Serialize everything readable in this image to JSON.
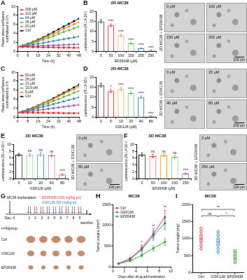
{
  "chart_data": [
    {
      "panel": "A",
      "type": "line",
      "x": [
        0,
        4,
        8,
        12,
        16,
        20,
        24,
        28,
        32,
        36,
        40,
        44,
        48
      ],
      "xlim": [
        0,
        48
      ],
      "xticks": [
        0,
        8,
        16,
        24,
        32,
        40,
        48
      ],
      "ylim": [
        0,
        10
      ],
      "yticks": [
        0,
        2,
        4,
        6,
        8,
        10
      ],
      "xlabel": "Time (h)",
      "ylabel": [
        "Phase area confluence",
        "normalized to 0 h"
      ],
      "grid": false,
      "legend": "upper left",
      "series": [
        {
          "name": "200 μM",
          "color": "#e41a1c",
          "values": [
            1,
            1,
            1,
            0.95,
            0.95,
            0.9,
            0.9,
            0.9,
            0.85,
            0.85,
            0.85,
            0.8,
            0.8
          ]
        },
        {
          "name": "113 μM",
          "color": "#984ea3",
          "values": [
            1,
            1.05,
            1.1,
            1.15,
            1.2,
            1.25,
            1.3,
            1.35,
            1.4,
            1.45,
            1.5,
            1.55,
            1.6
          ]
        },
        {
          "name": "64 μM",
          "color": "#377eb8",
          "values": [
            1,
            1.15,
            1.3,
            1.5,
            1.7,
            1.9,
            2.1,
            2.3,
            2.5,
            2.7,
            2.9,
            3.1,
            3.3
          ]
        },
        {
          "name": "36 μM",
          "color": "#4daf4a",
          "values": [
            1,
            1.2,
            1.5,
            1.8,
            2.2,
            2.6,
            3,
            3.4,
            3.9,
            4.3,
            4.7,
            5.1,
            5.5
          ]
        },
        {
          "name": "20 μM",
          "color": "#ff7f00",
          "values": [
            1,
            1.25,
            1.6,
            2,
            2.4,
            2.9,
            3.4,
            3.9,
            4.4,
            5,
            5.5,
            6,
            6.5
          ]
        },
        {
          "name": "Ctrl",
          "color": "#000000",
          "values": [
            1,
            1.3,
            1.7,
            2.1,
            2.6,
            3.1,
            3.7,
            4.3,
            4.9,
            5.5,
            6.1,
            6.7,
            7.3
          ]
        }
      ]
    },
    {
      "panel": "B",
      "type": "bar",
      "title": "2D MC38",
      "categories": [
        "0",
        "50",
        "100",
        "150",
        "200",
        "250"
      ],
      "values": [
        15,
        13,
        8,
        4,
        1.5,
        0.5
      ],
      "errors": [
        0.8,
        0.7,
        0.6,
        0.4,
        0.2,
        0.1
      ],
      "significance": [
        null,
        "****",
        "****",
        "****",
        "****",
        "****"
      ],
      "colors": [
        "#000000",
        "#e41a1c",
        "#ff7f00",
        "#4daf4a",
        "#377eb8",
        "#984ea3"
      ],
      "ylim": [
        0,
        20
      ],
      "yticks": [
        0,
        5,
        10,
        15,
        20
      ],
      "xlabel": "EPZ6438 (μM)",
      "ylabel": "Luminescence (RLU×10⁵)",
      "grid": false
    },
    {
      "panel": "C",
      "type": "line",
      "x": [
        0,
        4,
        8,
        12,
        16,
        20,
        24,
        28,
        32,
        36,
        40,
        44,
        48
      ],
      "xlim": [
        0,
        48
      ],
      "xticks": [
        0,
        8,
        16,
        24,
        32,
        40,
        48
      ],
      "ylim": [
        0,
        10
      ],
      "yticks": [
        0,
        2,
        4,
        6,
        8,
        10
      ],
      "xlabel": "Time (h)",
      "ylabel": [
        "Phase area confluence",
        "normalized to 0 h"
      ],
      "grid": false,
      "legend": "upper left",
      "series": [
        {
          "name": "50 μM",
          "color": "#e41a1c",
          "values": [
            1,
            1,
            1,
            1,
            1,
            1,
            0.95,
            0.95,
            0.95,
            0.9,
            0.9,
            0.9,
            0.9
          ]
        },
        {
          "name": "28 μM",
          "color": "#984ea3",
          "values": [
            1,
            1.1,
            1.25,
            1.4,
            1.55,
            1.7,
            1.85,
            2,
            2.15,
            2.3,
            2.45,
            2.6,
            2.75
          ]
        },
        {
          "name": "21 μM",
          "color": "#377eb8",
          "values": [
            1,
            1.2,
            1.45,
            1.7,
            2,
            2.3,
            2.6,
            2.9,
            3.2,
            3.5,
            3.8,
            4.1,
            4.4
          ]
        },
        {
          "name": "15.9 μM",
          "color": "#4daf4a",
          "values": [
            1,
            1.25,
            1.55,
            1.9,
            2.3,
            2.7,
            3.1,
            3.6,
            4,
            4.5,
            4.9,
            5.4,
            5.8
          ]
        },
        {
          "name": "9 μM",
          "color": "#ff7f00",
          "values": [
            1,
            1.3,
            1.6,
            2,
            2.5,
            3,
            3.5,
            4,
            4.6,
            5.1,
            5.7,
            6.2,
            6.8
          ]
        },
        {
          "name": "Ctrl",
          "color": "#000000",
          "values": [
            1,
            1.3,
            1.7,
            2.1,
            2.6,
            3.1,
            3.6,
            4.2,
            4.8,
            5.4,
            6,
            6.6,
            7.2
          ]
        }
      ]
    },
    {
      "panel": "D",
      "type": "bar",
      "title": "2D MC38",
      "categories": [
        "0",
        "5",
        "10",
        "20",
        "40",
        "80"
      ],
      "values": [
        16,
        13,
        14,
        12,
        10,
        0.5
      ],
      "errors": [
        0.9,
        0.7,
        0.8,
        0.7,
        0.6,
        0.1
      ],
      "significance": [
        null,
        "*",
        "****",
        "****",
        "****",
        "****"
      ],
      "colors": [
        "#000000",
        "#e41a1c",
        "#ff7f00",
        "#4daf4a",
        "#377eb8",
        "#984ea3"
      ],
      "ylim": [
        0,
        20
      ],
      "yticks": [
        0,
        5,
        10,
        15,
        20
      ],
      "xlabel": "GSK126 (μM)",
      "ylabel": "Luminescence (RLU×10⁵)",
      "grid": false
    },
    {
      "panel": "E",
      "type": "bar",
      "title": "3D MC38",
      "categories": [
        "0",
        "10",
        "20",
        "40",
        "80"
      ],
      "values": [
        7,
        6.9,
        7.1,
        6.8,
        1.2
      ],
      "errors": [
        0.4,
        0.4,
        0.5,
        0.4,
        0.2
      ],
      "significance": [
        null,
        "ns",
        "ns",
        "ns",
        "****"
      ],
      "colors": [
        "#000000",
        "#4daf4a",
        "#377eb8",
        "#984ea3",
        "#e41a1c"
      ],
      "ylim": [
        0,
        10
      ],
      "yticks": [
        0,
        2,
        4,
        6,
        8,
        10
      ],
      "xlabel": "GSK126 (μM)",
      "ylabel": "Luminescence (RLU×10⁵)",
      "grid": false
    },
    {
      "panel": "F",
      "type": "bar",
      "title": "3D MC38",
      "categories": [
        "0",
        "50",
        "100",
        "150",
        "250"
      ],
      "values": [
        7,
        6.6,
        6.8,
        6.4,
        1.5
      ],
      "errors": [
        0.5,
        0.5,
        0.4,
        0.4,
        0.2
      ],
      "significance": [
        null,
        "ns",
        "ns",
        "ns",
        "****"
      ],
      "colors": [
        "#000000",
        "#e41a1c",
        "#ff7f00",
        "#4daf4a",
        "#984ea3"
      ],
      "ylim": [
        0,
        10
      ],
      "yticks": [
        0,
        2,
        4,
        6,
        8,
        10
      ],
      "xlabel": "EPZ6438 (μM)",
      "ylabel": "Luminescence (RLU×10⁵)",
      "grid": false
    },
    {
      "panel": "H",
      "type": "line",
      "title": "MC38",
      "x": [
        1,
        3,
        5,
        7,
        9
      ],
      "xlim": [
        0,
        10
      ],
      "xticks": [
        0,
        2,
        4,
        6,
        8,
        10
      ],
      "ylim": [
        0,
        1500
      ],
      "yticks": [
        0,
        500,
        1000,
        1500
      ],
      "xlabel": "Days after drug administration",
      "ylabel": "Tumor volume (mm³)",
      "grid": false,
      "legend": "upper left",
      "significance": [
        null,
        null,
        "*",
        "**",
        "**"
      ],
      "series": [
        {
          "name": "Ctrl",
          "color": "#d62728",
          "values": [
            80,
            200,
            450,
            800,
            1200
          ],
          "errors": [
            10,
            30,
            70,
            120,
            160
          ]
        },
        {
          "name": "GSK126",
          "color": "#1f77b4",
          "values": [
            80,
            190,
            420,
            750,
            1050
          ],
          "errors": [
            10,
            30,
            60,
            110,
            150
          ]
        },
        {
          "name": "EPZ6438",
          "color": "#2ca02c",
          "values": [
            80,
            150,
            280,
            450,
            600
          ],
          "errors": [
            10,
            20,
            40,
            60,
            80
          ]
        }
      ]
    },
    {
      "panel": "I",
      "type": "scatter",
      "title": "MC38",
      "categories": [
        "Ctrl",
        "GSK126",
        "EPZ6438"
      ],
      "values": [
        [
          1100,
          900,
          1000,
          1300,
          800,
          950,
          1200,
          700,
          1050
        ],
        [
          1000,
          800,
          1200,
          700,
          900,
          1100,
          600,
          950,
          850
        ],
        [
          500,
          400,
          600,
          300,
          550,
          450,
          350,
          650,
          480
        ]
      ],
      "colors": [
        "#d62728",
        "#1f77b4",
        "#2ca02c"
      ],
      "ylim": [
        0,
        2000
      ],
      "yticks": [
        0,
        500,
        1000,
        1500,
        2000
      ],
      "ylabel": "Tumor weight (mg)",
      "grid": false,
      "comparisons": [
        {
          "groups": [
            "Ctrl",
            "GSK126"
          ],
          "label": "ns"
        },
        {
          "groups": [
            "Ctrl",
            "EPZ6438"
          ],
          "label": "**"
        },
        {
          "groups": [
            "GSK126",
            "EPZ6438"
          ],
          "label": "*"
        }
      ]
    }
  ],
  "images": [
    {
      "panel": "B",
      "label": "2D MC38 + EPZ6438",
      "frames": [
        "0 μM",
        "100 μM",
        "150 μM",
        "200 μM"
      ],
      "scale_bar": "100 μm"
    },
    {
      "panel": "D",
      "label": "2D MC38 + GSK126",
      "frames": [
        "0 μM",
        "20 μM",
        "40 μM",
        "80 μM"
      ],
      "scale_bar": "100 μm"
    },
    {
      "panel": "E",
      "label": "3D MC38 + GSK126",
      "frames": [
        "0 μM",
        "80 μM"
      ],
      "scale_bar": "100 μm"
    },
    {
      "panel": "F",
      "label": "3D MC38 + EPZ6438",
      "frames": [
        "0 μM",
        "250 μM"
      ],
      "scale_bar": "100 μm"
    }
  ],
  "schematic": {
    "panel": "G",
    "implantation": "MC38 implantation",
    "start_day": "Day -4",
    "drugs": [
      {
        "name": "EPZ6438 (100 mg/kg po)",
        "color": "#d62728"
      },
      {
        "name": "GSK126 (50 mg/kg ip)",
        "color": "#1f77b4"
      }
    ],
    "days": [
      "1",
      "2",
      "3",
      "4",
      "5",
      "6",
      "7",
      "8",
      "9"
    ],
    "end": "sacrifice",
    "group_size": "n=9/group",
    "groups": [
      "Ctrl",
      "GSK126",
      "EPZ6438"
    ]
  }
}
